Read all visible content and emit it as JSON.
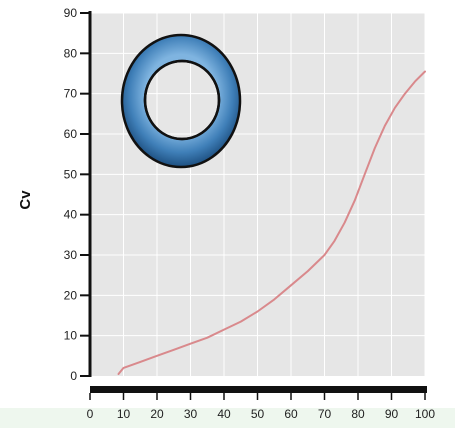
{
  "chart_data": {
    "type": "line",
    "title": "",
    "xlabel": "",
    "ylabel": "Cv",
    "xlim": [
      0,
      100
    ],
    "ylim": [
      0,
      90
    ],
    "x_ticks": [
      "0",
      "10",
      "20",
      "30",
      "40",
      "50",
      "60",
      "70",
      "80",
      "90",
      "100"
    ],
    "y_ticks": [
      "0",
      "10",
      "20",
      "30",
      "40",
      "50",
      "60",
      "70",
      "80",
      "90"
    ],
    "grid": true,
    "legend": "none",
    "colors": {
      "plot_background": "#e6e6e6",
      "grid": "#ffffff",
      "line": "#d9898c",
      "axis": "#111111",
      "icon_ring": "#3f7fb8"
    },
    "icon": "annular-ring-icon",
    "series": [
      {
        "x": [
          8.5,
          10,
          15,
          20,
          25,
          30,
          35,
          40,
          45,
          50,
          55,
          60,
          65,
          70,
          73,
          76,
          79,
          82,
          85,
          88,
          91,
          94,
          97,
          100
        ],
        "y": [
          0.5,
          2,
          3.5,
          5,
          6.5,
          8,
          9.5,
          11.5,
          13.5,
          16,
          19,
          22.5,
          26,
          30,
          33.5,
          38,
          43.5,
          50,
          56.5,
          62,
          66.5,
          70,
          73,
          75.5
        ]
      }
    ]
  }
}
